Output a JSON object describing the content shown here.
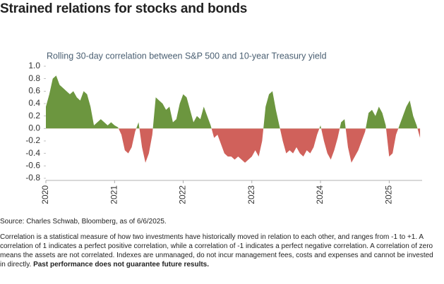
{
  "chart_data": {
    "type": "area",
    "title": "Strained relations for stocks and bonds",
    "subtitle": "Rolling 30-day correlation between S&P 500 and 10-year Treasury yield",
    "positive_color": "#6c963f",
    "negative_color": "#d0615b",
    "xlim": [
      2020,
      2025.48
    ],
    "xticks": [
      2020,
      2021,
      2022,
      2023,
      2024,
      2025
    ],
    "ylim": [
      -0.8,
      1.0
    ],
    "yticks": [
      {
        "value": 1.0,
        "label": "1.0"
      },
      {
        "value": 0.8,
        "label": "0.8"
      },
      {
        "value": 0.6,
        "label": "0.6"
      },
      {
        "value": 0.4,
        "label": "0.4"
      },
      {
        "value": 0.2,
        "label": "0.2"
      },
      {
        "value": 0,
        "label": "0.0"
      },
      {
        "value": -0.2,
        "label": "-0.2"
      },
      {
        "value": -0.4,
        "label": "-0.4"
      },
      {
        "value": -0.6,
        "label": "-0.6"
      },
      {
        "value": -0.8,
        "label": "-0.8"
      }
    ],
    "x": [
      2020.0,
      2020.05,
      2020.1,
      2020.15,
      2020.2,
      2020.25,
      2020.3,
      2020.35,
      2020.4,
      2020.45,
      2020.5,
      2020.55,
      2020.6,
      2020.65,
      2020.7,
      2020.75,
      2020.8,
      2020.85,
      2020.9,
      2020.95,
      2021.0,
      2021.05,
      2021.1,
      2021.15,
      2021.2,
      2021.25,
      2021.3,
      2021.35,
      2021.4,
      2021.45,
      2021.5,
      2021.55,
      2021.6,
      2021.65,
      2021.7,
      2021.75,
      2021.8,
      2021.85,
      2021.9,
      2021.95,
      2022.0,
      2022.05,
      2022.1,
      2022.15,
      2022.2,
      2022.25,
      2022.3,
      2022.35,
      2022.4,
      2022.45,
      2022.5,
      2022.55,
      2022.6,
      2022.65,
      2022.7,
      2022.75,
      2022.8,
      2022.85,
      2022.9,
      2022.95,
      2023.0,
      2023.05,
      2023.1,
      2023.15,
      2023.2,
      2023.25,
      2023.3,
      2023.35,
      2023.4,
      2023.45,
      2023.5,
      2023.55,
      2023.6,
      2023.65,
      2023.7,
      2023.75,
      2023.8,
      2023.85,
      2023.9,
      2023.95,
      2024.0,
      2024.05,
      2024.1,
      2024.15,
      2024.2,
      2024.25,
      2024.3,
      2024.35,
      2024.4,
      2024.45,
      2024.5,
      2024.55,
      2024.6,
      2024.65,
      2024.7,
      2024.75,
      2024.8,
      2024.85,
      2024.9,
      2024.95,
      2025.0,
      2025.05,
      2025.1,
      2025.15,
      2025.2,
      2025.25,
      2025.3,
      2025.35,
      2025.4,
      2025.45
    ],
    "values": [
      0.35,
      0.55,
      0.8,
      0.85,
      0.7,
      0.65,
      0.6,
      0.55,
      0.6,
      0.5,
      0.45,
      0.6,
      0.55,
      0.35,
      0.05,
      0.1,
      0.15,
      0.1,
      0.05,
      0.1,
      0.05,
      0.02,
      -0.1,
      -0.35,
      -0.4,
      -0.3,
      -0.05,
      0.1,
      -0.3,
      -0.55,
      -0.4,
      -0.1,
      0.5,
      0.45,
      0.4,
      0.3,
      0.35,
      0.1,
      0.15,
      0.4,
      0.55,
      0.5,
      0.3,
      0.1,
      0.2,
      0.15,
      0.35,
      0.2,
      0.05,
      -0.15,
      -0.1,
      -0.25,
      -0.4,
      -0.45,
      -0.45,
      -0.5,
      -0.45,
      -0.5,
      -0.55,
      -0.5,
      -0.45,
      -0.35,
      -0.45,
      -0.2,
      0.35,
      0.55,
      0.6,
      0.3,
      0.05,
      -0.2,
      -0.4,
      -0.35,
      -0.4,
      -0.3,
      -0.4,
      -0.45,
      -0.35,
      -0.4,
      -0.3,
      -0.1,
      0.05,
      -0.2,
      -0.4,
      -0.5,
      -0.35,
      -0.15,
      0.1,
      0.15,
      -0.3,
      -0.55,
      -0.45,
      -0.35,
      -0.2,
      -0.05,
      0.25,
      0.3,
      0.2,
      0.35,
      0.25,
      0.05,
      -0.45,
      -0.4,
      -0.1,
      0.05,
      0.2,
      0.35,
      0.45,
      0.2,
      0.05,
      -0.15
    ]
  },
  "source": "Source: Charles Schwab, Bloomberg, as of 6/6/2025.",
  "note": "Correlation is a statistical measure of how two investments have historically moved in relation to each other, and ranges from -1 to +1. A correlation of 1 indicates a perfect positive correlation, while a correlation of -1 indicates a perfect negative correlation. A correlation of zero means the assets are not correlated. Indexes are unmanaged, do not incur management fees, costs and expenses and cannot be invested in directly.",
  "note_bold": "Past performance does not guarantee future results."
}
